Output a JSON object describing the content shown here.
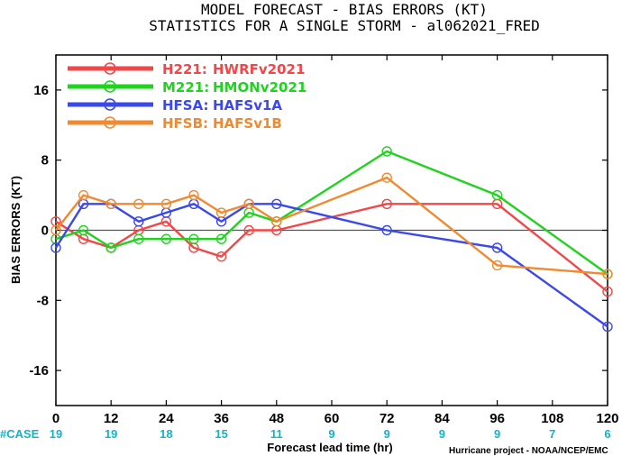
{
  "chart_data": {
    "type": "line",
    "title": "MODEL FORECAST - BIAS ERRORS (KT)",
    "subtitle": "STATISTICS FOR A SINGLE STORM - al062021_FRED",
    "xlabel": "Forecast lead time (hr)",
    "ylabel": "BIAS ERRORS (KT)",
    "xlim": [
      0,
      120
    ],
    "ylim": [
      -20,
      20
    ],
    "xticks": [
      0,
      12,
      24,
      36,
      48,
      60,
      72,
      84,
      96,
      108,
      120
    ],
    "yticks": [
      -16,
      -8,
      0,
      8,
      16
    ],
    "grid": false,
    "legend_position": "top-left",
    "case_label": "#CASE",
    "case_x": [
      0,
      12,
      24,
      36,
      48,
      60,
      72,
      84,
      96,
      108,
      120
    ],
    "case_counts": [
      "19",
      "19",
      "18",
      "15",
      "11",
      "9",
      "9",
      "9",
      "9",
      "7",
      "6"
    ],
    "credit": "Hurricane project - NOAA/NCEP/EMC",
    "series": [
      {
        "name": "H221:",
        "desc": "HWRFv2021",
        "color": "#f04848",
        "x": [
          0,
          6,
          12,
          18,
          24,
          30,
          36,
          42,
          48,
          72,
          96,
          120
        ],
        "y": [
          1,
          -1,
          -2,
          0,
          1,
          -2,
          -3,
          0,
          0,
          3,
          3,
          -7
        ]
      },
      {
        "name": "M221:",
        "desc": "HMONv2021",
        "color": "#1fd31f",
        "x": [
          0,
          6,
          12,
          18,
          24,
          30,
          36,
          42,
          48,
          72,
          96,
          120
        ],
        "y": [
          -1,
          0,
          -2,
          -1,
          -1,
          -1,
          -1,
          2,
          1,
          9,
          4,
          -5
        ]
      },
      {
        "name": "HFSA:",
        "desc": "HAFSv1A",
        "color": "#3a48ec",
        "x": [
          0,
          6,
          12,
          18,
          24,
          30,
          36,
          42,
          48,
          72,
          96,
          120
        ],
        "y": [
          -2,
          3,
          3,
          1,
          2,
          3,
          1,
          3,
          3,
          0,
          -2,
          -11
        ]
      },
      {
        "name": "HFSB:",
        "desc": "HAFSv1B",
        "color": "#f08a30",
        "x": [
          0,
          6,
          12,
          18,
          24,
          30,
          36,
          42,
          48,
          72,
          96,
          120
        ],
        "y": [
          0,
          4,
          3,
          3,
          3,
          4,
          2,
          3,
          1,
          6,
          -4,
          -5
        ]
      }
    ]
  }
}
